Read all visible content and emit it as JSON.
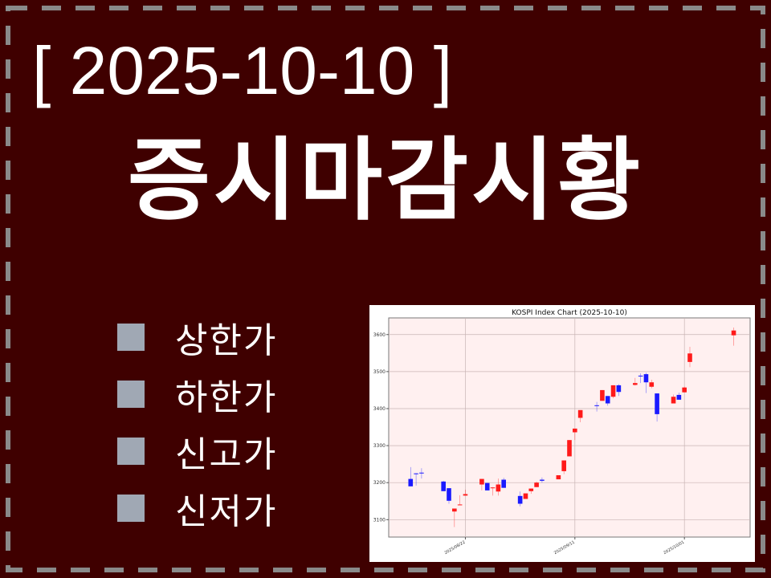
{
  "header": {
    "date_label": "[ 2025-10-10 ]",
    "title": "증시마감시황"
  },
  "menu": {
    "items": [
      {
        "label": "상한가",
        "icon": "square-bullet"
      },
      {
        "label": "하한가",
        "icon": "square-bullet"
      },
      {
        "label": "신고가",
        "icon": "square-bullet"
      },
      {
        "label": "신저가",
        "icon": "square-bullet"
      }
    ]
  },
  "colors": {
    "background": "#3f0000",
    "frame_dash": "#8a8a8a",
    "bullet": "#a0a8b4",
    "up": "#ff1a1a",
    "down": "#1a1aff",
    "plot_bg": "#fff0f0"
  },
  "chart_data": {
    "type": "candlestick",
    "title": "KOSPI Index Chart (2025-10-10)",
    "xlabel": "",
    "ylabel": "",
    "xlim": [
      "2025-08-08",
      "2025-10-13"
    ],
    "ylim": [
      3053,
      3645
    ],
    "yticks": [
      3100,
      3200,
      3300,
      3400,
      3500,
      3600
    ],
    "xticks": [
      "2025/08/22",
      "2025/09/11",
      "2025/10/01"
    ],
    "grid": true,
    "candles": [
      {
        "date": "2025-08-12",
        "open": 3210,
        "high": 3242,
        "low": 3190,
        "close": 3190
      },
      {
        "date": "2025-08-13",
        "open": 3225,
        "high": 3226,
        "low": 3192,
        "close": 3224
      },
      {
        "date": "2025-08-14",
        "open": 3227,
        "high": 3239,
        "low": 3211,
        "close": 3226
      },
      {
        "date": "2025-08-18",
        "open": 3203,
        "high": 3205,
        "low": 3177,
        "close": 3177
      },
      {
        "date": "2025-08-19",
        "open": 3185,
        "high": 3185,
        "low": 3143,
        "close": 3151
      },
      {
        "date": "2025-08-20",
        "open": 3122,
        "high": 3130,
        "low": 3080,
        "close": 3130
      },
      {
        "date": "2025-08-21",
        "open": 3140,
        "high": 3166,
        "low": 3140,
        "close": 3141
      },
      {
        "date": "2025-08-22",
        "open": 3165,
        "high": 3181,
        "low": 3165,
        "close": 3169
      },
      {
        "date": "2025-08-25",
        "open": 3195,
        "high": 3210,
        "low": 3179,
        "close": 3210
      },
      {
        "date": "2025-08-26",
        "open": 3199,
        "high": 3199,
        "low": 3179,
        "close": 3179
      },
      {
        "date": "2025-08-27",
        "open": 3186,
        "high": 3188,
        "low": 3165,
        "close": 3187
      },
      {
        "date": "2025-08-28",
        "open": 3176,
        "high": 3211,
        "low": 3165,
        "close": 3195
      },
      {
        "date": "2025-08-29",
        "open": 3208,
        "high": 3213,
        "low": 3186,
        "close": 3186
      },
      {
        "date": "2025-09-01",
        "open": 3164,
        "high": 3176,
        "low": 3136,
        "close": 3143
      },
      {
        "date": "2025-09-02",
        "open": 3156,
        "high": 3171,
        "low": 3156,
        "close": 3171
      },
      {
        "date": "2025-09-03",
        "open": 3177,
        "high": 3184,
        "low": 3170,
        "close": 3184
      },
      {
        "date": "2025-09-04",
        "open": 3188,
        "high": 3203,
        "low": 3188,
        "close": 3200
      },
      {
        "date": "2025-09-05",
        "open": 3208,
        "high": 3214,
        "low": 3200,
        "close": 3205
      },
      {
        "date": "2025-09-08",
        "open": 3209,
        "high": 3220,
        "low": 3209,
        "close": 3220
      },
      {
        "date": "2025-09-09",
        "open": 3231,
        "high": 3260,
        "low": 3223,
        "close": 3260
      },
      {
        "date": "2025-09-10",
        "open": 3271,
        "high": 3315,
        "low": 3271,
        "close": 3315
      },
      {
        "date": "2025-09-11",
        "open": 3336,
        "high": 3346,
        "low": 3315,
        "close": 3346
      },
      {
        "date": "2025-09-12",
        "open": 3375,
        "high": 3396,
        "low": 3363,
        "close": 3396
      },
      {
        "date": "2025-09-15",
        "open": 3409,
        "high": 3418,
        "low": 3392,
        "close": 3407
      },
      {
        "date": "2025-09-16",
        "open": 3421,
        "high": 3450,
        "low": 3421,
        "close": 3450
      },
      {
        "date": "2025-09-17",
        "open": 3434,
        "high": 3434,
        "low": 3408,
        "close": 3414
      },
      {
        "date": "2025-09-18",
        "open": 3432,
        "high": 3463,
        "low": 3428,
        "close": 3463
      },
      {
        "date": "2025-09-19",
        "open": 3463,
        "high": 3466,
        "low": 3434,
        "close": 3445
      },
      {
        "date": "2025-09-22",
        "open": 3464,
        "high": 3483,
        "low": 3462,
        "close": 3469
      },
      {
        "date": "2025-09-23",
        "open": 3489,
        "high": 3495,
        "low": 3469,
        "close": 3487
      },
      {
        "date": "2025-09-24",
        "open": 3493,
        "high": 3497,
        "low": 3442,
        "close": 3471
      },
      {
        "date": "2025-09-25",
        "open": 3459,
        "high": 3478,
        "low": 3455,
        "close": 3471
      },
      {
        "date": "2025-09-26",
        "open": 3441,
        "high": 3441,
        "low": 3365,
        "close": 3385
      },
      {
        "date": "2025-09-29",
        "open": 3414,
        "high": 3438,
        "low": 3414,
        "close": 3432
      },
      {
        "date": "2025-09-30",
        "open": 3437,
        "high": 3443,
        "low": 3424,
        "close": 3424
      },
      {
        "date": "2025-10-01",
        "open": 3444,
        "high": 3459,
        "low": 3444,
        "close": 3457
      },
      {
        "date": "2025-10-02",
        "open": 3526,
        "high": 3567,
        "low": 3512,
        "close": 3549
      },
      {
        "date": "2025-10-10",
        "open": 3598,
        "high": 3619,
        "low": 3570,
        "close": 3611
      }
    ]
  }
}
